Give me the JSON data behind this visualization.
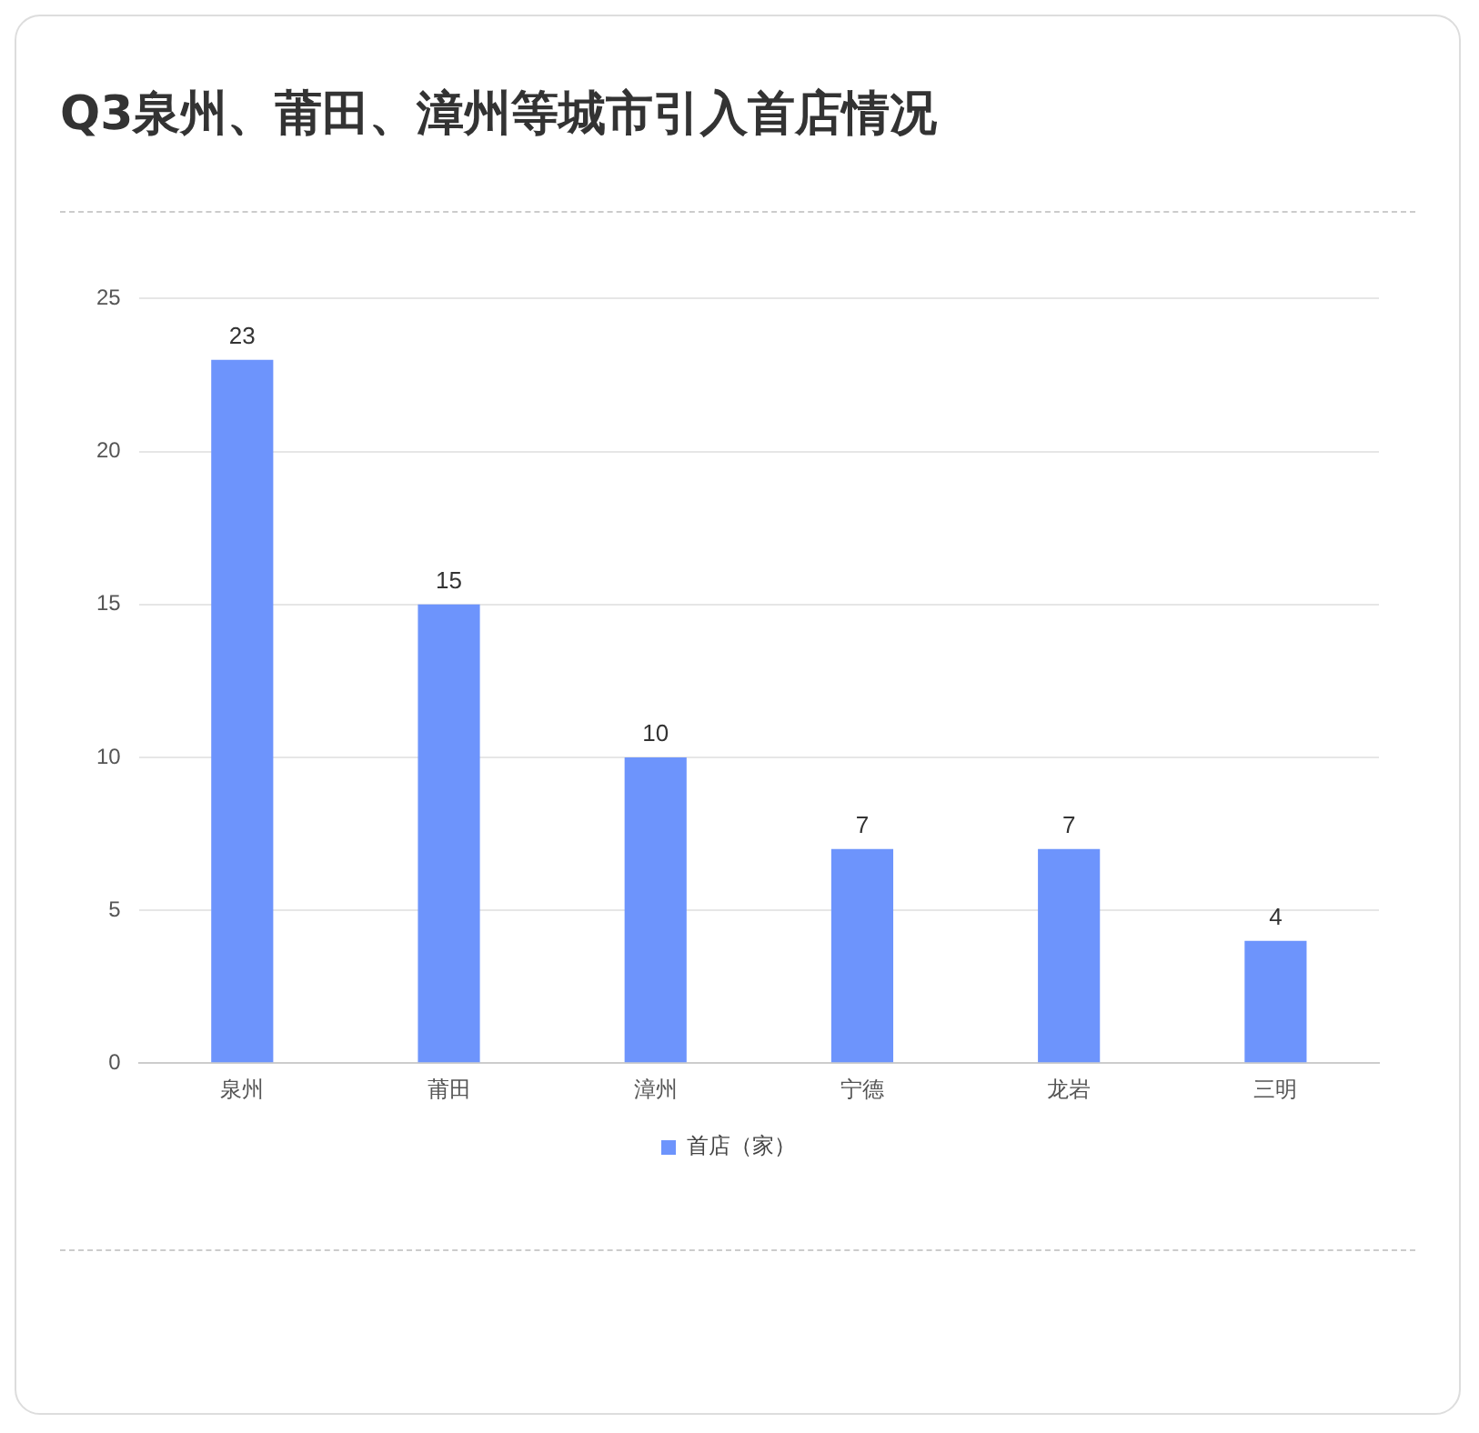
{
  "chart_data": {
    "type": "bar",
    "title": "Q3泉州、莆田、漳州等城市引入首店情况",
    "categories": [
      "泉州",
      "莆田",
      "漳州",
      "宁德",
      "龙岩",
      "三明"
    ],
    "series": [
      {
        "name": "首店（家）",
        "color": "#6d94fc",
        "values": [
          23,
          15,
          10,
          7,
          7,
          4
        ]
      }
    ],
    "ylim": [
      0,
      25
    ],
    "yticks": [
      0,
      5,
      10,
      15,
      20,
      25
    ],
    "grid": "y",
    "legend": "bottom",
    "data_labels": true
  }
}
